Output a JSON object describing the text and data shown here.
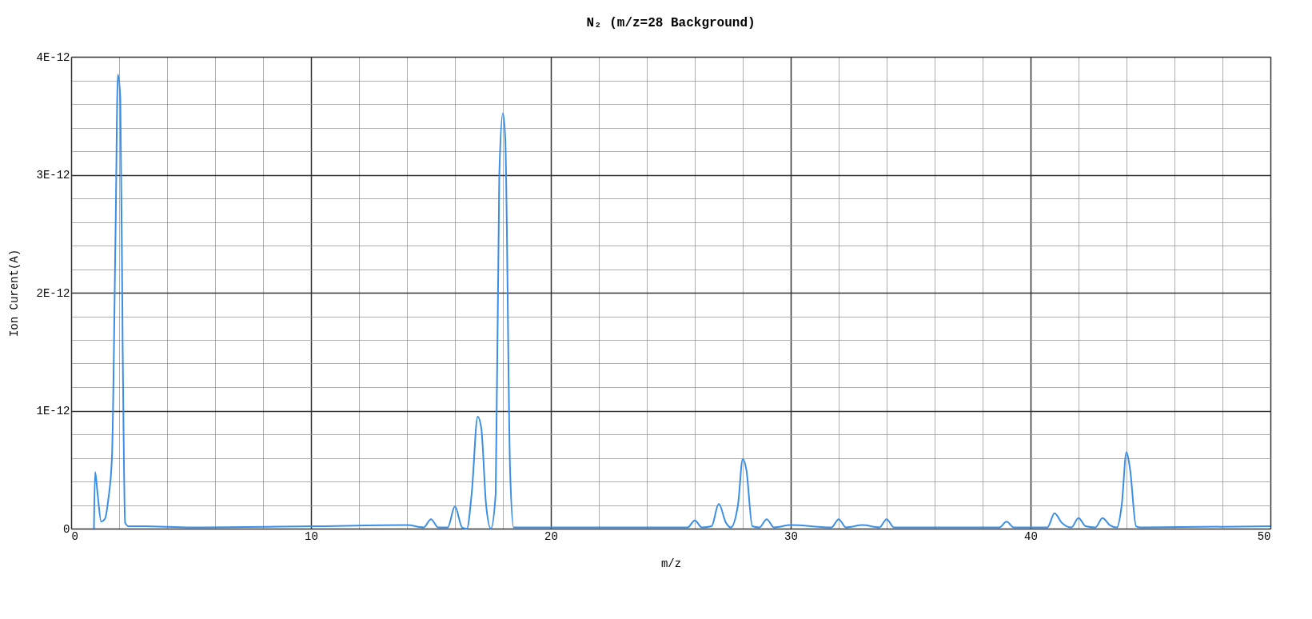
{
  "chart_data": {
    "type": "line",
    "title": "N₂ (m/z=28 Background)",
    "xlabel": "m/z",
    "ylabel": "Ion Curent(A)",
    "x": [
      0.95,
      1.0,
      1.1,
      1.25,
      1.4,
      1.55,
      1.7,
      1.85,
      1.95,
      2.05,
      2.15,
      2.25,
      2.4,
      3,
      5,
      10,
      14,
      14.7,
      15,
      15.3,
      15.7,
      16,
      16.3,
      16.5,
      16.7,
      16.95,
      17.1,
      17.3,
      17.5,
      17.7,
      17.85,
      18.0,
      18.1,
      18.3,
      18.45,
      20,
      25.7,
      26,
      26.3,
      26.7,
      27,
      27.3,
      27.5,
      27.8,
      28,
      28.15,
      28.4,
      28.7,
      29,
      29.3,
      30,
      31.7,
      32,
      32.3,
      33,
      33.7,
      34,
      34.3,
      38.7,
      39,
      39.3,
      40.7,
      41,
      41.3,
      41.7,
      42,
      42.3,
      42.7,
      43,
      43.3,
      43.6,
      43.8,
      44,
      44.15,
      44.4,
      44.6,
      50
    ],
    "series": [
      {
        "color": "#3a8ee6",
        "values": [
          0,
          4.8e-13,
          3e-13,
          6e-14,
          8e-14,
          2.5e-13,
          6e-13,
          2.5e-12,
          3.85e-12,
          3.65e-12,
          1.5e-12,
          5e-14,
          2e-14,
          2e-14,
          1e-14,
          2e-14,
          3e-14,
          1e-14,
          8e-14,
          1e-14,
          1e-14,
          1.9e-13,
          1e-14,
          0,
          3e-13,
          9.5e-13,
          8.5e-13,
          2e-13,
          0,
          3e-13,
          3e-12,
          3.52e-12,
          3.3e-12,
          5e-13,
          1e-14,
          1e-14,
          1e-14,
          7e-14,
          1e-14,
          2e-14,
          2.1e-13,
          5e-14,
          1e-14,
          2e-13,
          5.9e-13,
          5e-13,
          2e-14,
          1e-14,
          8e-14,
          1e-14,
          3e-14,
          1e-14,
          8e-14,
          1e-14,
          3e-14,
          1e-14,
          8e-14,
          1e-14,
          1e-14,
          6e-14,
          1e-14,
          1e-14,
          1.3e-13,
          5e-14,
          1e-14,
          9e-14,
          2e-14,
          1e-14,
          9e-14,
          3e-14,
          1e-14,
          2e-13,
          6.5e-13,
          5e-13,
          2e-14,
          1e-14,
          2e-14
        ]
      }
    ],
    "xlim": [
      0,
      50
    ],
    "xticks": [
      0,
      {
        "value": 2,
        "label": null
      },
      {
        "value": 4,
        "label": null
      },
      {
        "value": 6,
        "label": null
      },
      {
        "value": 8,
        "label": null
      },
      10,
      {
        "value": 12,
        "label": null
      },
      {
        "value": 14,
        "label": null
      },
      {
        "value": 16,
        "label": null
      },
      {
        "value": 18,
        "label": null
      },
      20,
      {
        "value": 22,
        "label": null
      },
      {
        "value": 24,
        "label": null
      },
      {
        "value": 26,
        "label": null
      },
      {
        "value": 28,
        "label": null
      },
      30,
      {
        "value": 32,
        "label": null
      },
      {
        "value": 34,
        "label": null
      },
      {
        "value": 36,
        "label": null
      },
      {
        "value": 38,
        "label": null
      },
      40,
      {
        "value": 42,
        "label": null
      },
      {
        "value": 44,
        "label": null
      },
      {
        "value": 46,
        "label": null
      },
      {
        "value": 48,
        "label": null
      },
      50
    ],
    "ylim": [
      0,
      4e-12
    ],
    "yticks": [
      0,
      {
        "value": 2e-13,
        "label": null
      },
      {
        "value": 4e-13,
        "label": null
      },
      {
        "value": 6e-13,
        "label": null
      },
      {
        "value": 8e-13,
        "label": null
      },
      {
        "value": 1e-12,
        "label": "1E-12"
      },
      {
        "value": 1.2e-12,
        "label": null
      },
      {
        "value": 1.4e-12,
        "label": null
      },
      {
        "value": 1.6e-12,
        "label": null
      },
      {
        "value": 1.8e-12,
        "label": null
      },
      {
        "value": 2e-12,
        "label": "2E-12"
      },
      {
        "value": 2.2e-12,
        "label": null
      },
      {
        "value": 2.4e-12,
        "label": null
      },
      {
        "value": 2.6e-12,
        "label": null
      },
      {
        "value": 2.8e-12,
        "label": null
      },
      {
        "value": 3e-12,
        "label": "3E-12"
      },
      {
        "value": 3.2e-12,
        "label": null
      },
      {
        "value": 3.4e-12,
        "label": null
      },
      {
        "value": 3.6e-12,
        "label": null
      },
      {
        "value": 3.8e-12,
        "label": null
      },
      {
        "value": 4e-12,
        "label": "4E-12"
      }
    ],
    "grid": true,
    "legend": false,
    "marker": "none",
    "line_style": "solid"
  }
}
